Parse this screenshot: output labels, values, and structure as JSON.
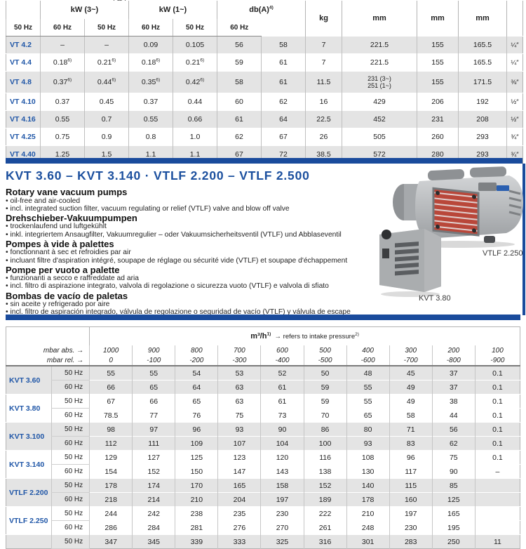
{
  "colors": {
    "accent_navy": "#1a4b9c",
    "heading_blue": "#1b4f9e",
    "row_label_blue": "#1f56a7",
    "stripe_gray": "#e4e4e4",
    "border_gray": "#b3b3b3",
    "grille_red": "#b9473a"
  },
  "top_table": {
    "motor_symbol": "M",
    "groups": [
      "kW (3~)",
      "kW (1~)",
      "db(A)^4)"
    ],
    "sub_headers": [
      "50 Hz",
      "60 Hz",
      "50 Hz",
      "60 Hz",
      "50 Hz",
      "60 Hz"
    ],
    "single_headers": [
      "kg",
      "mm",
      "mm",
      "mm",
      ""
    ],
    "rows": [
      {
        "label": "VT 4.2",
        "values": [
          "–",
          "–",
          "0.09",
          "0.105",
          "56",
          "58",
          "7",
          "221.5",
          "155",
          "165.5",
          "¼″"
        ]
      },
      {
        "label": "VT 4.4",
        "values": [
          "0.18^6)",
          "0.21^6)",
          "0.18^6)",
          "0.21^6)",
          "59",
          "61",
          "7",
          "221.5",
          "155",
          "165.5",
          "¼″"
        ]
      },
      {
        "label": "VT 4.8",
        "values": [
          "0.37^6)",
          "0.44^6)",
          "0.35^6)",
          "0.42^6)",
          "58",
          "61",
          "11.5",
          "231 (3~)\n251 (1~)",
          "155",
          "171.5",
          "⅜″"
        ]
      },
      {
        "label": "VT 4.10",
        "values": [
          "0.37",
          "0.45",
          "0.37",
          "0.44",
          "60",
          "62",
          "16",
          "429",
          "206",
          "192",
          "½″"
        ]
      },
      {
        "label": "VT 4.16",
        "values": [
          "0.55",
          "0.7",
          "0.55",
          "0.66",
          "61",
          "64",
          "22.5",
          "452",
          "231",
          "208",
          "½″"
        ]
      },
      {
        "label": "VT 4.25",
        "values": [
          "0.75",
          "0.9",
          "0.8",
          "1.0",
          "62",
          "67",
          "26",
          "505",
          "260",
          "293",
          "¾″"
        ]
      },
      {
        "label": "VT 4.40",
        "values": [
          "1.25",
          "1.5",
          "1.1",
          "1.1",
          "67",
          "72",
          "38.5",
          "572",
          "280",
          "293",
          "¾″"
        ]
      }
    ]
  },
  "section": {
    "heading": "KVT 3.60 – KVT 3.140  ·  VTLF 2.200 – VTLF 2.500",
    "languages": [
      {
        "title": "Rotary vane vacuum pumps",
        "bullets": [
          "oil-free and air-cooled",
          "incl. integrated suction filter, vacuum regulating or relief (VTLF) valve and blow off valve"
        ]
      },
      {
        "title": "Drehschieber-Vakuumpumpen",
        "bullets": [
          "trockenlaufend und luftgekühlt",
          "inkl. integriertem Ansaugfilter, Vakuumregulier – oder Vakuumsicherheitsventil (VTLF) und Abblaseventil"
        ]
      },
      {
        "title": "Pompes à vide à palettes",
        "bullets": [
          "fonctionnant à sec et refroidies par air",
          "incluant filtre d'aspiration intégré, soupape de réglage ou sécurité vide (VTLF) et soupape d'échappement"
        ]
      },
      {
        "title": "Pompe per vuoto a palette",
        "bullets": [
          "funzionanti a secco e raffreddate ad aria",
          "incl. filtro di aspirazione integrato, valvola di regolazione o sicurezza vuoto (VTLF) e valvola di sfiato"
        ]
      },
      {
        "title": "Bombas de vacío de paletas",
        "bullets": [
          "sin aceite y refrigerado por aire",
          "incl. filtro de aspiración integrado, válvula de regolazione o seguridad de vacío (VTLF) y válvula de escape"
        ]
      }
    ],
    "photo_labels": [
      "VTLF 2.250",
      "KVT 3.80"
    ]
  },
  "bottom_table": {
    "unit": "m³/h^1)",
    "unit_note": "→ refers to intake pressure^2)",
    "mbar_abs": {
      "label": "mbar abs. →",
      "values": [
        "1000",
        "900",
        "800",
        "700",
        "600",
        "500",
        "400",
        "300",
        "200",
        "100"
      ]
    },
    "mbar_rel": {
      "label": "mbar rel. →",
      "values": [
        "0",
        "-100",
        "-200",
        "-300",
        "-400",
        "-500",
        "-600",
        "-700",
        "-800",
        "-900"
      ]
    },
    "hz_labels": [
      "50 Hz",
      "60 Hz"
    ],
    "pumps": [
      {
        "name": "KVT 3.60",
        "hz50": [
          "55",
          "55",
          "54",
          "53",
          "52",
          "50",
          "48",
          "45",
          "37",
          "0.1"
        ],
        "hz60": [
          "66",
          "65",
          "64",
          "63",
          "61",
          "59",
          "55",
          "49",
          "37",
          "0.1"
        ]
      },
      {
        "name": "KVT 3.80",
        "hz50": [
          "67",
          "66",
          "65",
          "63",
          "61",
          "59",
          "55",
          "49",
          "38",
          "0.1"
        ],
        "hz60": [
          "78.5",
          "77",
          "76",
          "75",
          "73",
          "70",
          "65",
          "58",
          "44",
          "0.1"
        ]
      },
      {
        "name": "KVT 3.100",
        "hz50": [
          "98",
          "97",
          "96",
          "93",
          "90",
          "86",
          "80",
          "71",
          "56",
          "0.1"
        ],
        "hz60": [
          "112",
          "111",
          "109",
          "107",
          "104",
          "100",
          "93",
          "83",
          "62",
          "0.1"
        ]
      },
      {
        "name": "KVT 3.140",
        "hz50": [
          "129",
          "127",
          "125",
          "123",
          "120",
          "116",
          "108",
          "96",
          "75",
          "0.1"
        ],
        "hz60": [
          "154",
          "152",
          "150",
          "147",
          "143",
          "138",
          "130",
          "117",
          "90",
          "–"
        ]
      },
      {
        "name": "VTLF 2.200",
        "hz50": [
          "178",
          "174",
          "170",
          "165",
          "158",
          "152",
          "140",
          "115",
          "85",
          ""
        ],
        "hz60": [
          "218",
          "214",
          "210",
          "204",
          "197",
          "189",
          "178",
          "160",
          "125",
          ""
        ]
      },
      {
        "name": "VTLF 2.250",
        "hz50": [
          "244",
          "242",
          "238",
          "235",
          "230",
          "222",
          "210",
          "197",
          "165",
          ""
        ],
        "hz60": [
          "286",
          "284",
          "281",
          "276",
          "270",
          "261",
          "248",
          "230",
          "195",
          ""
        ]
      },
      {
        "name": "",
        "partial": true,
        "hz50": [
          "347",
          "345",
          "339",
          "333",
          "325",
          "316",
          "301",
          "283",
          "250",
          "11"
        ],
        "hz60": null
      }
    ]
  }
}
